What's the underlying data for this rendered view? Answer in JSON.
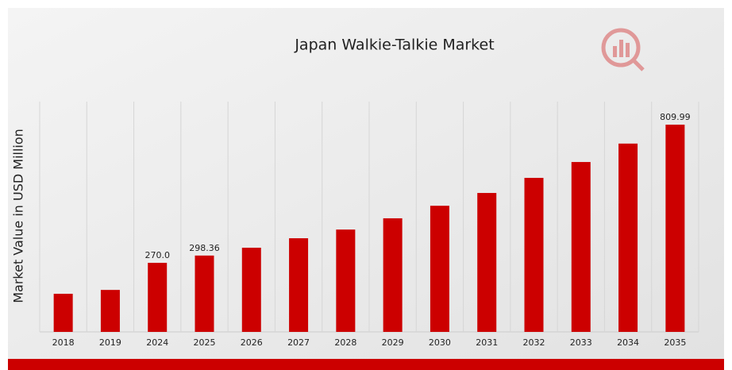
{
  "chart_data": {
    "type": "bar",
    "title": "Japan Walkie-Talkie Market",
    "y_label": "Market Value in USD Million",
    "categories": [
      "2018",
      "2019",
      "2024",
      "2025",
      "2026",
      "2027",
      "2028",
      "2029",
      "2030",
      "2031",
      "2032",
      "2033",
      "2034",
      "2035"
    ],
    "values": [
      149,
      164,
      270.0,
      298.36,
      329,
      366,
      400,
      444,
      493,
      543,
      602,
      664,
      736,
      809.99
    ],
    "value_labels": [
      null,
      null,
      "270.0",
      "298.36",
      null,
      null,
      null,
      null,
      null,
      null,
      null,
      null,
      null,
      "809.99"
    ],
    "color": "#cc0000",
    "grid": true
  }
}
